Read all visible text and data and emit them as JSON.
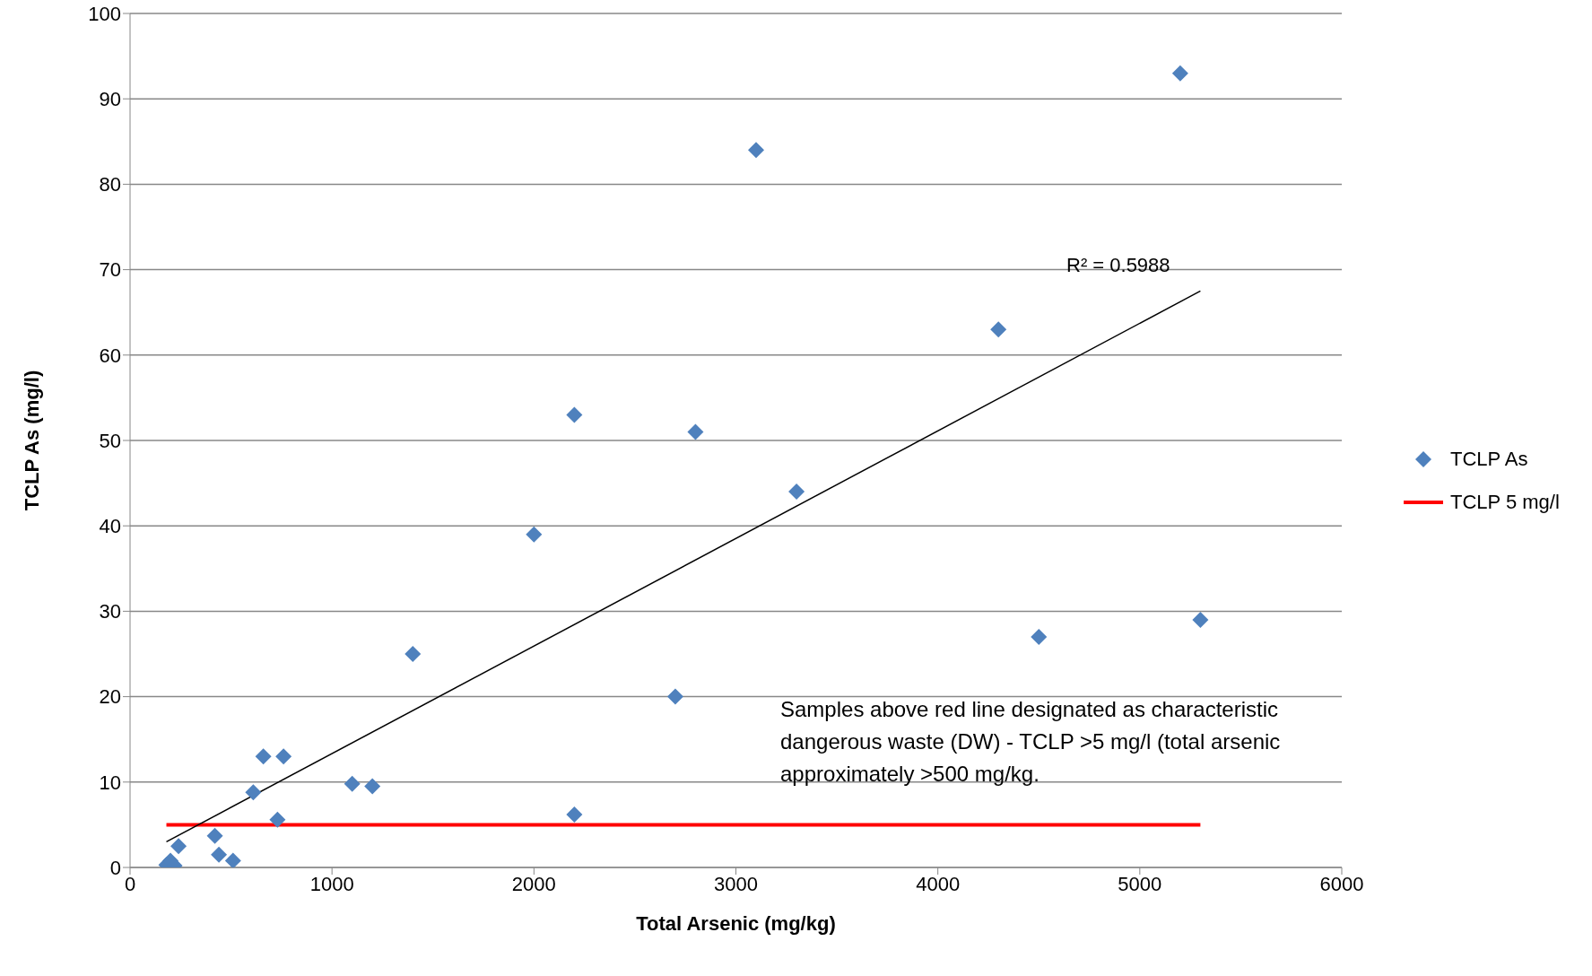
{
  "chart_data": {
    "type": "scatter",
    "xlabel": "Total Arsenic (mg/kg)",
    "ylabel": "TCLP As (mg/l)",
    "xlim": [
      0,
      6000
    ],
    "xticks": [
      0,
      1000,
      2000,
      3000,
      4000,
      5000,
      6000
    ],
    "ylim": [
      0,
      100
    ],
    "yticks": [
      0,
      10,
      20,
      30,
      40,
      50,
      60,
      70,
      80,
      90,
      100
    ],
    "grid": "y",
    "legend": "right",
    "annotations": [
      "R² = 0.5988",
      "Samples above red line designated as characteristic dangerous waste (DW) - TCLP >5 mg/l  (total arsenic approximately >500 mg/kg."
    ],
    "series": [
      {
        "name": "TCLP As",
        "marker": "diamond",
        "color": "#4f81bd",
        "x": [
          180,
          200,
          220,
          240,
          420,
          440,
          510,
          610,
          660,
          730,
          760,
          1100,
          1200,
          1400,
          2000,
          2200,
          2200,
          2700,
          2800,
          3100,
          3300,
          4300,
          4500,
          5200,
          5300
        ],
        "values": [
          0.3,
          0.8,
          0.2,
          2.5,
          3.7,
          1.5,
          0.8,
          8.8,
          13,
          5.6,
          13,
          9.8,
          9.5,
          25,
          39,
          53,
          6.2,
          20,
          51,
          84,
          44,
          63,
          27,
          93,
          29
        ]
      },
      {
        "name": "TCLP 5 mg/l",
        "type": "line",
        "marker": "none",
        "color": "#ff0000",
        "x": [
          180,
          5300
        ],
        "values": [
          5,
          5
        ]
      },
      {
        "type": "line",
        "marker": "none",
        "color": "#000000",
        "x": [
          180,
          5300
        ],
        "values": [
          3.0,
          67.5
        ]
      }
    ]
  }
}
